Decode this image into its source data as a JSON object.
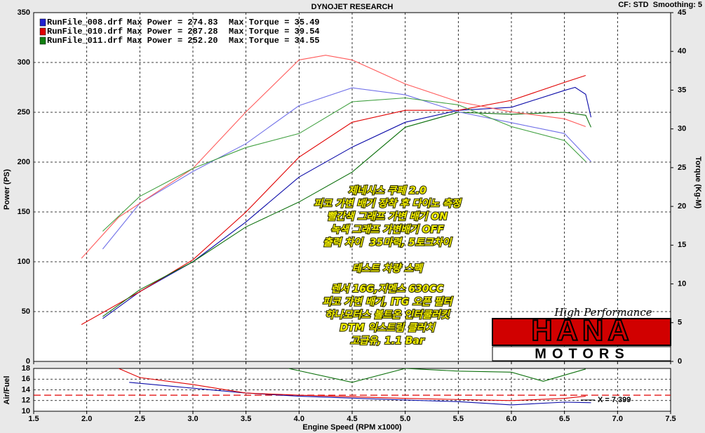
{
  "header": {
    "title": "DYNOJET RESEARCH",
    "settings": "CF: STD  Smoothing: 5"
  },
  "logo": {
    "script": "High Performance",
    "main": "HANA",
    "sub": "MOTORS"
  },
  "notes": {
    "block1": [
      "제네시스 쿠페 2.0",
      "피코 가변 배기 장착 후 다이노 측정",
      "빨간색 그래프 가변 배기 ON",
      "녹색 그래프 가변배기 OFF",
      "출력 차이  35마력, 5토크차이"
    ],
    "block2": [
      "테스트 차량 스펙"
    ],
    "block3": [
      "렌서 16G,지멘스 630CC",
      "피코 가변 배기, ITG 오픈 필터",
      "하나모터스 볼트온 인터쿨러킷",
      "DTM 익스트림 클러치",
      "고급유, 1.1 Bar"
    ]
  },
  "chart_data": [
    {
      "type": "line",
      "ylabel": "Power (PS)",
      "y2label": "Torque (Kg-M)",
      "xlim": [
        1.5,
        7.5
      ],
      "xticks": [
        1.5,
        {
          "value": 2,
          "label": "2.0"
        },
        2.5,
        {
          "value": 3,
          "label": "3.0"
        },
        3.5,
        {
          "value": 4,
          "label": "4.0"
        },
        4.5,
        {
          "value": 5,
          "label": "5.0"
        },
        5.5,
        {
          "value": 6,
          "label": "6.0"
        },
        6.5,
        {
          "value": 7,
          "label": "7.0"
        },
        7.5
      ],
      "ylim": [
        0,
        350
      ],
      "yticks": [
        0,
        50,
        100,
        150,
        200,
        250,
        300,
        350
      ],
      "y2lim": [
        0,
        45
      ],
      "y2ticks": [
        0,
        5,
        10,
        15,
        20,
        25,
        30,
        35,
        40,
        45
      ],
      "grid": true,
      "legend": [
        {
          "name": "RunFile_008.drf",
          "power": "Max Power = 274.83",
          "torque": "Max Torque = 35.49",
          "color": "#2020d0"
        },
        {
          "name": "RunFile_010.drf",
          "power": "Max Power = 287.28",
          "torque": "Max Torque = 39.54",
          "color": "#e00000"
        },
        {
          "name": "RunFile_011.drf",
          "power": "Max Power = 252.20",
          "torque": "Max Torque = 34.55",
          "color": "#108010"
        }
      ],
      "series": [
        {
          "color": "#0a0aa8",
          "x": [
            2.15,
            2.5,
            3.0,
            3.5,
            4.0,
            4.5,
            5.0,
            5.5,
            6.0,
            6.5,
            6.6,
            6.7,
            6.75
          ],
          "values": [
            43,
            70,
            100,
            140,
            185,
            215,
            240,
            252,
            255,
            272,
            275,
            268,
            245
          ]
        },
        {
          "color": "#e00000",
          "x": [
            1.95,
            2.5,
            3.0,
            3.5,
            4.0,
            4.5,
            5.0,
            5.5,
            6.0,
            6.5,
            6.7
          ],
          "values": [
            37,
            70,
            102,
            150,
            205,
            240,
            252,
            252,
            262,
            280,
            287
          ]
        },
        {
          "color": "#0c700c",
          "x": [
            2.15,
            2.5,
            3.0,
            3.5,
            4.0,
            4.5,
            5.0,
            5.5,
            6.0,
            6.5,
            6.7,
            6.75
          ],
          "values": [
            45,
            72,
            100,
            135,
            160,
            190,
            235,
            250,
            248,
            250,
            247,
            235
          ]
        },
        {
          "color": "#7070e8",
          "axis": "y2",
          "x": [
            2.15,
            2.5,
            3.0,
            3.5,
            4.0,
            4.5,
            5.0,
            5.5,
            6.0,
            6.5,
            6.75
          ],
          "values": [
            14.5,
            20.4,
            24.5,
            28.1,
            33.0,
            35.3,
            34.4,
            32.2,
            30.8,
            29.4,
            25.8
          ]
        },
        {
          "color": "#ff5a5a",
          "axis": "y2",
          "x": [
            1.95,
            2.3,
            3.0,
            3.5,
            4.0,
            4.25,
            4.5,
            5.0,
            5.5,
            6.0,
            6.5,
            6.7
          ],
          "values": [
            13.3,
            18.6,
            24.9,
            32.2,
            38.9,
            39.5,
            38.9,
            35.8,
            33.5,
            32.2,
            31.3,
            30.3
          ]
        },
        {
          "color": "#40a040",
          "axis": "y2",
          "x": [
            2.15,
            2.5,
            3.0,
            3.5,
            4.0,
            4.5,
            5.0,
            5.5,
            6.0,
            6.5,
            6.7
          ],
          "values": [
            16.8,
            21.3,
            24.9,
            27.6,
            29.4,
            33.5,
            34.0,
            33.1,
            30.3,
            28.5,
            25.8
          ]
        }
      ]
    },
    {
      "type": "line",
      "ylabel": "Air/Fuel",
      "xlabel": "Engine Speed (RPM x1000)",
      "xlim": [
        1.5,
        7.5
      ],
      "xticks": [
        1.5,
        {
          "value": 2,
          "label": "2.0"
        },
        2.5,
        {
          "value": 3,
          "label": "3.0"
        },
        3.5,
        {
          "value": 4,
          "label": "4.0"
        },
        4.5,
        {
          "value": 5,
          "label": "5.0"
        },
        5.5,
        {
          "value": 6,
          "label": "6.0"
        },
        6.5,
        {
          "value": 7,
          "label": "7.0"
        },
        7.5
      ],
      "ylim": [
        10,
        18
      ],
      "yticks": [
        10,
        12,
        14,
        16,
        18
      ],
      "grid": true,
      "reference_line": 13,
      "reference_color": "#e00000",
      "annotation": "X = 7.399",
      "series": [
        {
          "color": "#0a0aa8",
          "x": [
            2.4,
            3.0,
            3.5,
            4.0,
            5.0,
            5.5,
            6.0,
            6.5,
            6.75
          ],
          "values": [
            15.4,
            14.3,
            13.4,
            12.8,
            12.1,
            11.8,
            11.2,
            11.7,
            11.6
          ]
        },
        {
          "color": "#e00000",
          "x": [
            2.3,
            2.5,
            3.0,
            3.5,
            4.0,
            5.0,
            6.0,
            6.5,
            6.7
          ],
          "values": [
            18,
            16.3,
            15,
            13.4,
            13,
            12.4,
            12,
            12.4,
            12.8
          ]
        },
        {
          "color": "#0c700c",
          "x": [
            3.9,
            4.5,
            5.0,
            5.5,
            6.0,
            6.3,
            6.7
          ],
          "values": [
            18,
            15.4,
            18,
            17.5,
            17.3,
            15.6,
            17.9
          ]
        }
      ]
    }
  ]
}
